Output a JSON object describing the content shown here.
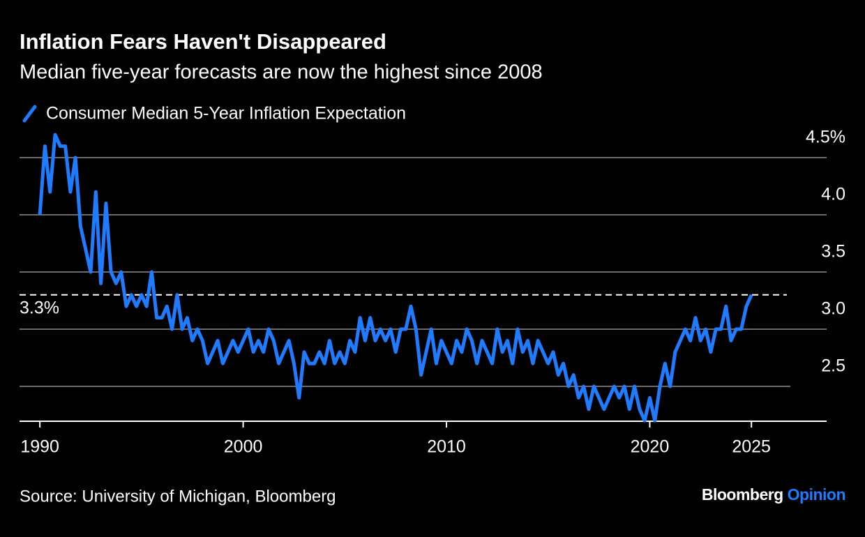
{
  "chart_data": {
    "type": "line",
    "title": "Inflation Fears Haven't Disappeared",
    "subtitle": "Median five-year forecasts are now the highest since 2008",
    "source": "Source: University of Michigan, Bloomberg",
    "brand": "Bloomberg",
    "brand_section": "Opinion",
    "x": [
      1990.0,
      1990.25,
      1990.5,
      1990.75,
      1991.0,
      1991.25,
      1991.5,
      1991.75,
      1992.0,
      1992.25,
      1992.5,
      1992.75,
      1993.0,
      1993.25,
      1993.5,
      1993.75,
      1994.0,
      1994.25,
      1994.5,
      1994.75,
      1995.0,
      1995.25,
      1995.5,
      1995.75,
      1996.0,
      1996.25,
      1996.5,
      1996.75,
      1997.0,
      1997.25,
      1997.5,
      1997.75,
      1998.0,
      1998.25,
      1998.5,
      1998.75,
      1999.0,
      1999.25,
      1999.5,
      1999.75,
      2000.0,
      2000.25,
      2000.5,
      2000.75,
      2001.0,
      2001.25,
      2001.5,
      2001.75,
      2002.0,
      2002.25,
      2002.5,
      2002.75,
      2003.0,
      2003.25,
      2003.5,
      2003.75,
      2004.0,
      2004.25,
      2004.5,
      2004.75,
      2005.0,
      2005.25,
      2005.5,
      2005.75,
      2006.0,
      2006.25,
      2006.5,
      2006.75,
      2007.0,
      2007.25,
      2007.5,
      2007.75,
      2008.0,
      2008.25,
      2008.5,
      2008.75,
      2009.0,
      2009.25,
      2009.5,
      2009.75,
      2010.0,
      2010.25,
      2010.5,
      2010.75,
      2011.0,
      2011.25,
      2011.5,
      2011.75,
      2012.0,
      2012.25,
      2012.5,
      2012.75,
      2013.0,
      2013.25,
      2013.5,
      2013.75,
      2014.0,
      2014.25,
      2014.5,
      2014.75,
      2015.0,
      2015.25,
      2015.5,
      2015.75,
      2016.0,
      2016.25,
      2016.5,
      2016.75,
      2017.0,
      2017.25,
      2017.5,
      2017.75,
      2018.0,
      2018.25,
      2018.5,
      2018.75,
      2019.0,
      2019.25,
      2019.5,
      2019.75,
      2020.0,
      2020.25,
      2020.5,
      2020.75,
      2021.0,
      2021.25,
      2021.5,
      2021.75,
      2022.0,
      2022.25,
      2022.5,
      2022.75,
      2023.0,
      2023.25,
      2023.5,
      2023.75,
      2024.0,
      2024.25,
      2024.5,
      2024.75,
      2025.0
    ],
    "series": [
      {
        "name": "Consumer Median 5-Year Inflation Expectation",
        "color": "#1f7bff",
        "values": [
          4.0,
          4.6,
          4.2,
          4.7,
          4.6,
          4.6,
          4.2,
          4.5,
          3.9,
          3.7,
          3.5,
          4.2,
          3.4,
          4.1,
          3.5,
          3.4,
          3.5,
          3.2,
          3.3,
          3.2,
          3.3,
          3.2,
          3.5,
          3.1,
          3.1,
          3.2,
          3.0,
          3.3,
          3.0,
          3.1,
          2.9,
          3.0,
          2.9,
          2.7,
          2.8,
          2.9,
          2.7,
          2.8,
          2.9,
          2.8,
          2.9,
          3.0,
          2.8,
          2.9,
          2.8,
          3.0,
          2.9,
          2.7,
          2.8,
          2.9,
          2.7,
          2.4,
          2.8,
          2.7,
          2.7,
          2.8,
          2.7,
          2.9,
          2.7,
          2.8,
          2.7,
          2.9,
          2.8,
          3.1,
          2.9,
          3.1,
          2.9,
          3.0,
          2.9,
          3.0,
          2.8,
          3.0,
          3.0,
          3.2,
          3.0,
          2.6,
          2.8,
          3.0,
          2.7,
          2.9,
          2.8,
          2.7,
          2.9,
          2.8,
          3.0,
          2.9,
          2.7,
          2.9,
          2.8,
          2.7,
          3.0,
          2.8,
          2.9,
          2.7,
          3.0,
          2.8,
          2.9,
          2.7,
          2.9,
          2.8,
          2.7,
          2.8,
          2.6,
          2.7,
          2.5,
          2.6,
          2.4,
          2.5,
          2.3,
          2.5,
          2.4,
          2.3,
          2.4,
          2.5,
          2.4,
          2.5,
          2.3,
          2.5,
          2.3,
          2.2,
          2.4,
          2.2,
          2.5,
          2.7,
          2.5,
          2.8,
          2.9,
          3.0,
          2.9,
          3.1,
          2.9,
          3.0,
          2.8,
          3.0,
          3.0,
          3.2,
          2.9,
          3.0,
          3.0,
          3.2,
          3.3
        ]
      }
    ],
    "reference_line": {
      "value": 3.3,
      "label": "3.3%"
    },
    "xlim": [
      1989,
      2028.7
    ],
    "xticks": [
      1990,
      2000,
      2010,
      2020,
      2025
    ],
    "ylim": [
      2.195,
      4.8
    ],
    "yticks": [
      2.5,
      {
        "value": 3,
        "label": "3.0"
      },
      3.5,
      {
        "value": 4,
        "label": "4.0"
      },
      {
        "value": 4.5,
        "label": "4.5%"
      }
    ],
    "grid": true
  }
}
